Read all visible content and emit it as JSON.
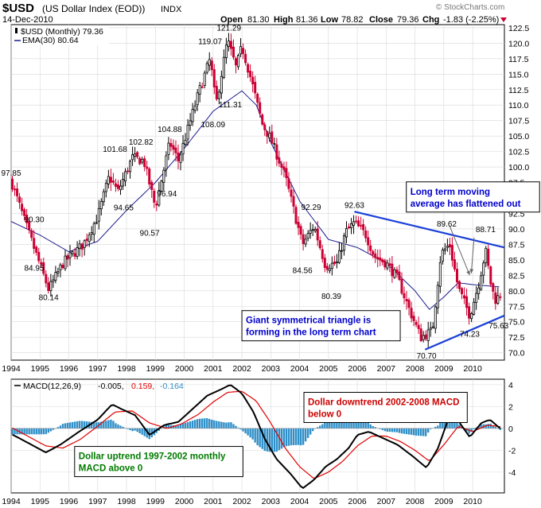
{
  "header": {
    "symbol": "$USD",
    "name": "(US Dollar Index (EOD))",
    "exchange": "INDX",
    "date": "14-Dec-2010",
    "watermark": "© StockCharts.com",
    "quote": {
      "open_label": "Open",
      "open": "81.30",
      "high_label": "High",
      "high": "81.36",
      "low_label": "Low",
      "low": "78.82",
      "close_label": "Close",
      "close": "79.36",
      "chg_label": "Chg",
      "chg": "-1.83 (-2.25%)"
    }
  },
  "colors": {
    "up": "#000000",
    "down": "#cc0033",
    "ema": "#1a1a8c",
    "trendline": "#1a3fd9",
    "macd": "#000000",
    "signal": "#e00000",
    "histogram": "#2f8fc8",
    "grid": "#d8d8d8",
    "annot_blue": "#0000cc",
    "annot_red": "#cc0000",
    "annot_green": "#007a00",
    "chg_arrow": "#cc0033"
  },
  "chart_data": [
    {
      "type": "candlestick",
      "panel": "price",
      "legend": [
        {
          "text": "$USD (Monthly) 79.36",
          "icon": "candle-icon"
        },
        {
          "text": "EMA(30) 80.64",
          "icon": "line-icon"
        }
      ],
      "x_ticks": [
        "1994",
        "1995",
        "1996",
        "1997",
        "1998",
        "1999",
        "2000",
        "2001",
        "2002",
        "2003",
        "2004",
        "2005",
        "2006",
        "2007",
        "2008",
        "2009",
        "2010"
      ],
      "x_range": [
        1994.0,
        2011.1
      ],
      "y_range": [
        68.8,
        123.0
      ],
      "y_ticks": [
        "70.0",
        "72.5",
        "75.0",
        "77.5",
        "80.0",
        "82.5",
        "85.0",
        "87.5",
        "90.0",
        "92.5",
        "95.0",
        "97.5",
        "100.0",
        "102.5",
        "105.0",
        "107.5",
        "110.0",
        "112.5",
        "115.0",
        "117.5",
        "120.0",
        "122.5"
      ],
      "price_anchors": [
        [
          1994.0,
          97.8
        ],
        [
          1994.6,
          89.5
        ],
        [
          1995.3,
          80.2
        ],
        [
          1995.8,
          84.5
        ],
        [
          1996.5,
          87.5
        ],
        [
          1997.0,
          92.0
        ],
        [
          1997.4,
          98.5
        ],
        [
          1997.7,
          96.0
        ],
        [
          1998.2,
          101.5
        ],
        [
          1998.6,
          101.0
        ],
        [
          1999.0,
          93.5
        ],
        [
          1999.5,
          104.0
        ],
        [
          1999.8,
          101.0
        ],
        [
          2000.5,
          112.0
        ],
        [
          2000.9,
          117.5
        ],
        [
          2001.1,
          110.0
        ],
        [
          2001.5,
          120.5
        ],
        [
          2001.8,
          116.0
        ],
        [
          2002.0,
          119.5
        ],
        [
          2002.3,
          114.5
        ],
        [
          2002.7,
          107.0
        ],
        [
          2003.0,
          104.5
        ],
        [
          2003.5,
          98.5
        ],
        [
          2004.1,
          87.5
        ],
        [
          2004.5,
          90.5
        ],
        [
          2004.9,
          84.0
        ],
        [
          2005.3,
          84.5
        ],
        [
          2005.6,
          89.5
        ],
        [
          2005.9,
          91.0
        ],
        [
          2006.3,
          89.0
        ],
        [
          2006.6,
          85.5
        ],
        [
          2007.0,
          84.5
        ],
        [
          2007.4,
          82.0
        ],
        [
          2007.8,
          77.0
        ],
        [
          2008.2,
          72.5
        ],
        [
          2008.6,
          73.5
        ],
        [
          2008.9,
          86.0
        ],
        [
          2009.2,
          87.5
        ],
        [
          2009.5,
          80.5
        ],
        [
          2009.9,
          76.0
        ],
        [
          2010.2,
          81.0
        ],
        [
          2010.45,
          86.5
        ],
        [
          2010.65,
          80.5
        ],
        [
          2010.8,
          78.5
        ],
        [
          2010.95,
          79.4
        ]
      ],
      "ema_anchors": [
        [
          1994.0,
          91.2
        ],
        [
          1995.0,
          89.0
        ],
        [
          1996.0,
          86.3
        ],
        [
          1997.0,
          88.0
        ],
        [
          1998.0,
          93.0
        ],
        [
          1999.0,
          97.5
        ],
        [
          2000.0,
          103.0
        ],
        [
          2001.0,
          109.0
        ],
        [
          2002.0,
          112.3
        ],
        [
          2002.5,
          110.0
        ],
        [
          2003.0,
          104.0
        ],
        [
          2004.0,
          94.5
        ],
        [
          2005.0,
          88.3
        ],
        [
          2006.0,
          87.0
        ],
        [
          2007.0,
          84.5
        ],
        [
          2008.0,
          80.0
        ],
        [
          2008.5,
          77.0
        ],
        [
          2009.0,
          79.0
        ],
        [
          2009.5,
          81.3
        ],
        [
          2010.0,
          81.0
        ],
        [
          2010.95,
          80.64
        ]
      ],
      "price_labels": [
        {
          "text": "97.85",
          "x": 1994.0,
          "y": 97.85,
          "pos": "above"
        },
        {
          "text": "90.30",
          "x": 1994.8,
          "y": 90.3,
          "pos": "above"
        },
        {
          "text": "84.95",
          "x": 1994.8,
          "y": 84.95,
          "pos": "below"
        },
        {
          "text": "80.14",
          "x": 1995.3,
          "y": 80.14,
          "pos": "below"
        },
        {
          "text": "101.68",
          "x": 1997.6,
          "y": 101.68,
          "pos": "above"
        },
        {
          "text": "94.65",
          "x": 1997.9,
          "y": 94.65,
          "pos": "below"
        },
        {
          "text": "102.82",
          "x": 1998.5,
          "y": 102.82,
          "pos": "above"
        },
        {
          "text": "90.57",
          "x": 1998.8,
          "y": 90.57,
          "pos": "below"
        },
        {
          "text": "96.94",
          "x": 1999.4,
          "y": 96.94,
          "pos": "below"
        },
        {
          "text": "104.88",
          "x": 1999.5,
          "y": 104.88,
          "pos": "above"
        },
        {
          "text": "108.09",
          "x": 2001.0,
          "y": 108.09,
          "pos": "below"
        },
        {
          "text": "119.07",
          "x": 2000.9,
          "y": 119.07,
          "pos": "above"
        },
        {
          "text": "121.29",
          "x": 2001.55,
          "y": 121.29,
          "pos": "above"
        },
        {
          "text": "111.31",
          "x": 2001.6,
          "y": 111.31,
          "pos": "below"
        },
        {
          "text": "92.29",
          "x": 2004.4,
          "y": 92.29,
          "pos": "above"
        },
        {
          "text": "84.56",
          "x": 2004.1,
          "y": 84.56,
          "pos": "below"
        },
        {
          "text": "80.39",
          "x": 2005.1,
          "y": 80.39,
          "pos": "below"
        },
        {
          "text": "92.63",
          "x": 2005.9,
          "y": 92.63,
          "pos": "above"
        },
        {
          "text": "70.70",
          "x": 2008.4,
          "y": 70.7,
          "pos": "below"
        },
        {
          "text": "89.62",
          "x": 2009.1,
          "y": 89.62,
          "pos": "above"
        },
        {
          "text": "74.23",
          "x": 2009.9,
          "y": 74.23,
          "pos": "below"
        },
        {
          "text": "88.71",
          "x": 2010.45,
          "y": 88.71,
          "pos": "above"
        },
        {
          "text": "75.63",
          "x": 2010.9,
          "y": 75.63,
          "pos": "below"
        }
      ],
      "trendlines": [
        {
          "from": [
            2005.9,
            92.8
          ],
          "to": [
            2011.1,
            87.0
          ]
        },
        {
          "from": [
            2008.35,
            70.5
          ],
          "to": [
            2011.1,
            76.0
          ]
        }
      ],
      "arrows": [
        {
          "from": [
            2009.2,
            90.5
          ],
          "to": [
            2009.9,
            82.5
          ]
        },
        {
          "from": [
            2010.05,
            88.6
          ],
          "to": [
            2009.95,
            82.8
          ]
        }
      ],
      "annotations": [
        {
          "text": [
            "Long term moving",
            "average has flattened out"
          ],
          "x": 2007.7,
          "y": 97.6,
          "color": "annot_blue"
        },
        {
          "text": [
            "Giant symmetrical triangle is",
            "forming in the long term chart"
          ],
          "x": 2002.0,
          "y": 76.8,
          "color": "annot_blue"
        }
      ]
    },
    {
      "type": "line",
      "panel": "macd",
      "legend": [
        {
          "text": "MACD(12,26,9)",
          "color": "macd"
        },
        {
          "text": "-0.005,",
          "color": "macd"
        },
        {
          "text": "0.159,",
          "color": "signal"
        },
        {
          "text": "-0.164",
          "color": "histogram"
        }
      ],
      "y_range": [
        -5.9,
        4.5
      ],
      "y_ticks": [
        "4",
        "2",
        "0",
        "-2",
        "-4"
      ],
      "macd_anchors": [
        [
          1994.0,
          -0.5
        ],
        [
          1994.5,
          -1.2
        ],
        [
          1995.2,
          -2.2
        ],
        [
          1995.7,
          -1.5
        ],
        [
          1996.3,
          -0.4
        ],
        [
          1997.0,
          0.8
        ],
        [
          1997.5,
          2.2
        ],
        [
          1997.8,
          1.8
        ],
        [
          1998.3,
          1.2
        ],
        [
          1998.8,
          -0.6
        ],
        [
          1999.3,
          0.3
        ],
        [
          1999.8,
          0.6
        ],
        [
          2000.3,
          1.8
        ],
        [
          2000.8,
          3.0
        ],
        [
          2001.3,
          3.6
        ],
        [
          2001.6,
          4.0
        ],
        [
          2002.0,
          3.2
        ],
        [
          2002.4,
          1.5
        ],
        [
          2002.8,
          -1.0
        ],
        [
          2003.2,
          -2.8
        ],
        [
          2003.7,
          -4.2
        ],
        [
          2004.1,
          -5.5
        ],
        [
          2004.5,
          -4.7
        ],
        [
          2004.9,
          -3.5
        ],
        [
          2005.3,
          -2.8
        ],
        [
          2005.7,
          -1.8
        ],
        [
          2006.0,
          -0.6
        ],
        [
          2006.4,
          -0.3
        ],
        [
          2006.9,
          -0.9
        ],
        [
          2007.4,
          -1.5
        ],
        [
          2007.9,
          -2.5
        ],
        [
          2008.4,
          -3.6
        ],
        [
          2008.8,
          -1.8
        ],
        [
          2009.2,
          1.2
        ],
        [
          2009.5,
          0.7
        ],
        [
          2009.9,
          -0.8
        ],
        [
          2010.3,
          0.5
        ],
        [
          2010.6,
          0.8
        ],
        [
          2010.95,
          0.0
        ]
      ],
      "signal_anchors": [
        [
          1994.0,
          0.1
        ],
        [
          1994.5,
          -0.6
        ],
        [
          1995.2,
          -1.6
        ],
        [
          1995.8,
          -1.8
        ],
        [
          1996.4,
          -1.0
        ],
        [
          1997.0,
          0.2
        ],
        [
          1997.6,
          1.5
        ],
        [
          1998.2,
          1.6
        ],
        [
          1998.8,
          0.5
        ],
        [
          1999.4,
          0.0
        ],
        [
          1999.9,
          0.4
        ],
        [
          2000.5,
          1.3
        ],
        [
          2001.0,
          2.4
        ],
        [
          2001.5,
          3.3
        ],
        [
          2002.0,
          3.4
        ],
        [
          2002.5,
          2.5
        ],
        [
          2003.0,
          0.5
        ],
        [
          2003.5,
          -1.8
        ],
        [
          2004.0,
          -3.5
        ],
        [
          2004.5,
          -4.6
        ],
        [
          2005.0,
          -4.0
        ],
        [
          2005.5,
          -3.0
        ],
        [
          2006.0,
          -1.6
        ],
        [
          2006.5,
          -0.7
        ],
        [
          2007.0,
          -0.7
        ],
        [
          2007.5,
          -1.2
        ],
        [
          2008.0,
          -2.0
        ],
        [
          2008.5,
          -3.0
        ],
        [
          2009.0,
          -1.5
        ],
        [
          2009.5,
          0.2
        ],
        [
          2010.0,
          -0.3
        ],
        [
          2010.5,
          0.3
        ],
        [
          2010.95,
          0.16
        ]
      ],
      "annotations": [
        {
          "text": [
            "Dollar downtrend 2002-2008 MACD",
            "below 0"
          ],
          "x": 2004.15,
          "y": 3.3,
          "color": "annot_red"
        },
        {
          "text": [
            "Dollar uptrend 1997-2002 monthly",
            "MACD above 0"
          ],
          "x": 1996.2,
          "y": -1.65,
          "color": "annot_green"
        }
      ]
    }
  ]
}
